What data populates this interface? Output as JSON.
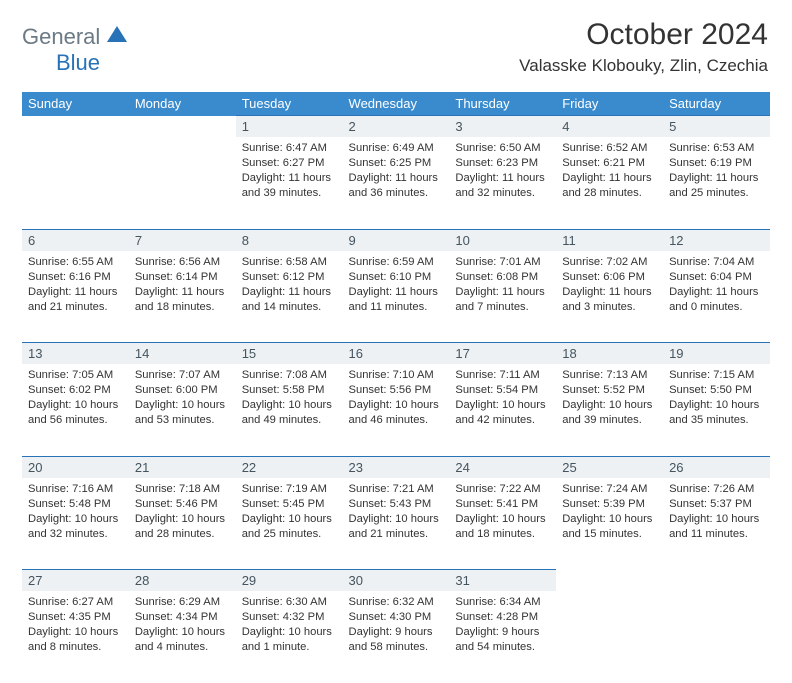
{
  "header": {
    "logo_top": "General",
    "logo_bottom": "Blue",
    "month_title": "October 2024",
    "location": "Valasske Klobouky, Zlin, Czechia"
  },
  "colors": {
    "header_bg": "#3a8bce",
    "daynum_bg": "#eef1f3",
    "daynum_text": "#445560",
    "border_top": "#2872b7",
    "logo_blue": "#2872b7",
    "logo_gray": "#6b7a85"
  },
  "weekdays": [
    "Sunday",
    "Monday",
    "Tuesday",
    "Wednesday",
    "Thursday",
    "Friday",
    "Saturday"
  ],
  "weeks": [
    [
      null,
      null,
      {
        "num": "1",
        "sunrise": "Sunrise: 6:47 AM",
        "sunset": "Sunset: 6:27 PM",
        "day1": "Daylight: 11 hours",
        "day2": "and 39 minutes."
      },
      {
        "num": "2",
        "sunrise": "Sunrise: 6:49 AM",
        "sunset": "Sunset: 6:25 PM",
        "day1": "Daylight: 11 hours",
        "day2": "and 36 minutes."
      },
      {
        "num": "3",
        "sunrise": "Sunrise: 6:50 AM",
        "sunset": "Sunset: 6:23 PM",
        "day1": "Daylight: 11 hours",
        "day2": "and 32 minutes."
      },
      {
        "num": "4",
        "sunrise": "Sunrise: 6:52 AM",
        "sunset": "Sunset: 6:21 PM",
        "day1": "Daylight: 11 hours",
        "day2": "and 28 minutes."
      },
      {
        "num": "5",
        "sunrise": "Sunrise: 6:53 AM",
        "sunset": "Sunset: 6:19 PM",
        "day1": "Daylight: 11 hours",
        "day2": "and 25 minutes."
      }
    ],
    [
      {
        "num": "6",
        "sunrise": "Sunrise: 6:55 AM",
        "sunset": "Sunset: 6:16 PM",
        "day1": "Daylight: 11 hours",
        "day2": "and 21 minutes."
      },
      {
        "num": "7",
        "sunrise": "Sunrise: 6:56 AM",
        "sunset": "Sunset: 6:14 PM",
        "day1": "Daylight: 11 hours",
        "day2": "and 18 minutes."
      },
      {
        "num": "8",
        "sunrise": "Sunrise: 6:58 AM",
        "sunset": "Sunset: 6:12 PM",
        "day1": "Daylight: 11 hours",
        "day2": "and 14 minutes."
      },
      {
        "num": "9",
        "sunrise": "Sunrise: 6:59 AM",
        "sunset": "Sunset: 6:10 PM",
        "day1": "Daylight: 11 hours",
        "day2": "and 11 minutes."
      },
      {
        "num": "10",
        "sunrise": "Sunrise: 7:01 AM",
        "sunset": "Sunset: 6:08 PM",
        "day1": "Daylight: 11 hours",
        "day2": "and 7 minutes."
      },
      {
        "num": "11",
        "sunrise": "Sunrise: 7:02 AM",
        "sunset": "Sunset: 6:06 PM",
        "day1": "Daylight: 11 hours",
        "day2": "and 3 minutes."
      },
      {
        "num": "12",
        "sunrise": "Sunrise: 7:04 AM",
        "sunset": "Sunset: 6:04 PM",
        "day1": "Daylight: 11 hours",
        "day2": "and 0 minutes."
      }
    ],
    [
      {
        "num": "13",
        "sunrise": "Sunrise: 7:05 AM",
        "sunset": "Sunset: 6:02 PM",
        "day1": "Daylight: 10 hours",
        "day2": "and 56 minutes."
      },
      {
        "num": "14",
        "sunrise": "Sunrise: 7:07 AM",
        "sunset": "Sunset: 6:00 PM",
        "day1": "Daylight: 10 hours",
        "day2": "and 53 minutes."
      },
      {
        "num": "15",
        "sunrise": "Sunrise: 7:08 AM",
        "sunset": "Sunset: 5:58 PM",
        "day1": "Daylight: 10 hours",
        "day2": "and 49 minutes."
      },
      {
        "num": "16",
        "sunrise": "Sunrise: 7:10 AM",
        "sunset": "Sunset: 5:56 PM",
        "day1": "Daylight: 10 hours",
        "day2": "and 46 minutes."
      },
      {
        "num": "17",
        "sunrise": "Sunrise: 7:11 AM",
        "sunset": "Sunset: 5:54 PM",
        "day1": "Daylight: 10 hours",
        "day2": "and 42 minutes."
      },
      {
        "num": "18",
        "sunrise": "Sunrise: 7:13 AM",
        "sunset": "Sunset: 5:52 PM",
        "day1": "Daylight: 10 hours",
        "day2": "and 39 minutes."
      },
      {
        "num": "19",
        "sunrise": "Sunrise: 7:15 AM",
        "sunset": "Sunset: 5:50 PM",
        "day1": "Daylight: 10 hours",
        "day2": "and 35 minutes."
      }
    ],
    [
      {
        "num": "20",
        "sunrise": "Sunrise: 7:16 AM",
        "sunset": "Sunset: 5:48 PM",
        "day1": "Daylight: 10 hours",
        "day2": "and 32 minutes."
      },
      {
        "num": "21",
        "sunrise": "Sunrise: 7:18 AM",
        "sunset": "Sunset: 5:46 PM",
        "day1": "Daylight: 10 hours",
        "day2": "and 28 minutes."
      },
      {
        "num": "22",
        "sunrise": "Sunrise: 7:19 AM",
        "sunset": "Sunset: 5:45 PM",
        "day1": "Daylight: 10 hours",
        "day2": "and 25 minutes."
      },
      {
        "num": "23",
        "sunrise": "Sunrise: 7:21 AM",
        "sunset": "Sunset: 5:43 PM",
        "day1": "Daylight: 10 hours",
        "day2": "and 21 minutes."
      },
      {
        "num": "24",
        "sunrise": "Sunrise: 7:22 AM",
        "sunset": "Sunset: 5:41 PM",
        "day1": "Daylight: 10 hours",
        "day2": "and 18 minutes."
      },
      {
        "num": "25",
        "sunrise": "Sunrise: 7:24 AM",
        "sunset": "Sunset: 5:39 PM",
        "day1": "Daylight: 10 hours",
        "day2": "and 15 minutes."
      },
      {
        "num": "26",
        "sunrise": "Sunrise: 7:26 AM",
        "sunset": "Sunset: 5:37 PM",
        "day1": "Daylight: 10 hours",
        "day2": "and 11 minutes."
      }
    ],
    [
      {
        "num": "27",
        "sunrise": "Sunrise: 6:27 AM",
        "sunset": "Sunset: 4:35 PM",
        "day1": "Daylight: 10 hours",
        "day2": "and 8 minutes."
      },
      {
        "num": "28",
        "sunrise": "Sunrise: 6:29 AM",
        "sunset": "Sunset: 4:34 PM",
        "day1": "Daylight: 10 hours",
        "day2": "and 4 minutes."
      },
      {
        "num": "29",
        "sunrise": "Sunrise: 6:30 AM",
        "sunset": "Sunset: 4:32 PM",
        "day1": "Daylight: 10 hours",
        "day2": "and 1 minute."
      },
      {
        "num": "30",
        "sunrise": "Sunrise: 6:32 AM",
        "sunset": "Sunset: 4:30 PM",
        "day1": "Daylight: 9 hours",
        "day2": "and 58 minutes."
      },
      {
        "num": "31",
        "sunrise": "Sunrise: 6:34 AM",
        "sunset": "Sunset: 4:28 PM",
        "day1": "Daylight: 9 hours",
        "day2": "and 54 minutes."
      },
      null,
      null
    ]
  ]
}
